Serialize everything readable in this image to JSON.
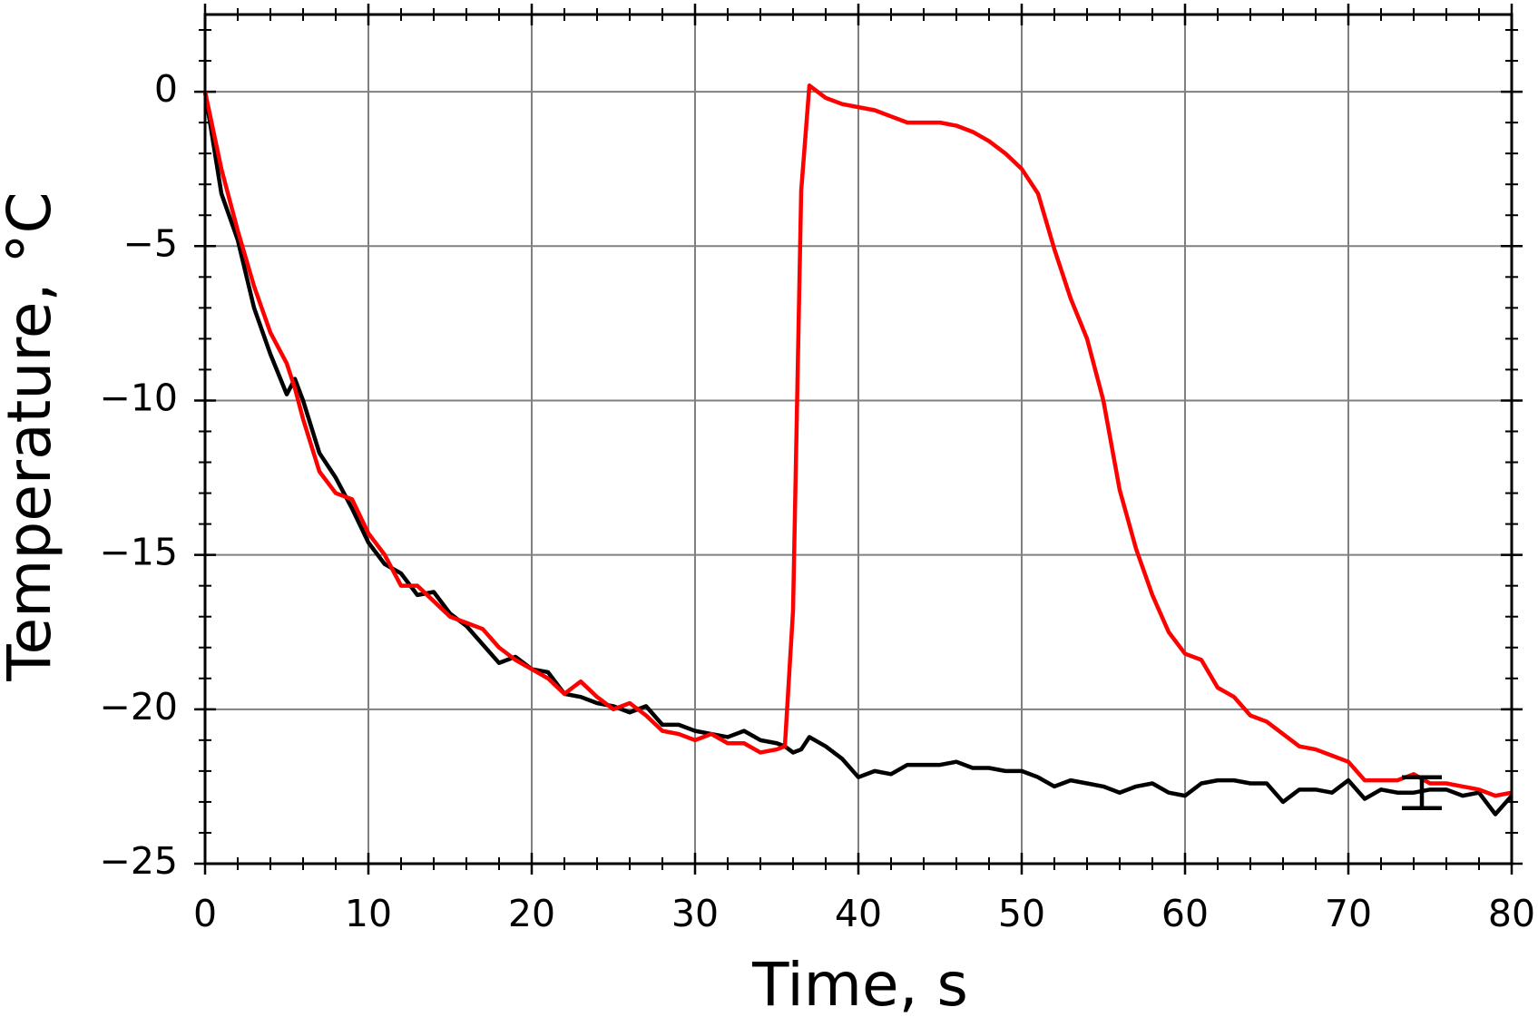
{
  "chart_data": {
    "type": "line",
    "xlabel": "Time, s",
    "ylabel": "Temperature, °C",
    "x": [
      0,
      1,
      2,
      3,
      4,
      5,
      5.5,
      6,
      7,
      8,
      9,
      10,
      11,
      12,
      13,
      14,
      15,
      16,
      17,
      18,
      19,
      20,
      21,
      22,
      23,
      24,
      25,
      26,
      27,
      28,
      29,
      30,
      31,
      32,
      33,
      34,
      35,
      35.5,
      36,
      36.5,
      37,
      38,
      39,
      40,
      41,
      42,
      43,
      44,
      45,
      46,
      47,
      48,
      49,
      50,
      51,
      52,
      53,
      54,
      55,
      56,
      57,
      58,
      59,
      60,
      61,
      62,
      63,
      64,
      65,
      66,
      67,
      68,
      69,
      70,
      71,
      72,
      73,
      74,
      75,
      76,
      77,
      78,
      79,
      80
    ],
    "series": [
      {
        "name": "black",
        "color": "#000000",
        "values": [
          0,
          -3.3,
          -4.8,
          -7,
          -8.5,
          -9.8,
          -9.3,
          -10,
          -11.7,
          -12.5,
          -13.5,
          -14.6,
          -15.3,
          -15.6,
          -16.3,
          -16.2,
          -16.9,
          -17.3,
          -17.9,
          -18.5,
          -18.3,
          -18.7,
          -18.8,
          -19.5,
          -19.6,
          -19.8,
          -19.9,
          -20.1,
          -19.9,
          -20.5,
          -20.5,
          -20.7,
          -20.8,
          -20.9,
          -20.7,
          -21.0,
          -21.1,
          -21.2,
          -21.4,
          -21.3,
          -20.9,
          -21.2,
          -21.6,
          -22.2,
          -22.0,
          -22.1,
          -21.8,
          -21.8,
          -21.8,
          -21.7,
          -21.9,
          -21.9,
          -22.0,
          -22.0,
          -22.2,
          -22.5,
          -22.3,
          -22.4,
          -22.5,
          -22.7,
          -22.5,
          -22.4,
          -22.7,
          -22.8,
          -22.4,
          -22.3,
          -22.3,
          -22.4,
          -22.4,
          -23.0,
          -22.6,
          -22.6,
          -22.7,
          -22.3,
          -22.9,
          -22.6,
          -22.7,
          -22.7,
          -22.6,
          -22.6,
          -22.8,
          -22.7,
          -23.4,
          -22.8
        ]
      },
      {
        "name": "red",
        "color": "#ff0000",
        "values": [
          0,
          -2.5,
          -4.5,
          -6.3,
          -7.8,
          -8.8,
          -9.6,
          -10.6,
          -12.3,
          -13.0,
          -13.2,
          -14.3,
          -15.0,
          -16.0,
          -16.0,
          -16.5,
          -17.0,
          -17.2,
          -17.4,
          -18.0,
          -18.4,
          -18.7,
          -19.0,
          -19.5,
          -19.1,
          -19.6,
          -20.0,
          -19.8,
          -20.2,
          -20.7,
          -20.8,
          -21.0,
          -20.8,
          -21.1,
          -21.1,
          -21.4,
          -21.3,
          -21.2,
          -16.8,
          -3.2,
          0.2,
          -0.2,
          -0.4,
          -0.5,
          -0.6,
          -0.8,
          -1.0,
          -1.0,
          -1.0,
          -1.1,
          -1.3,
          -1.6,
          -2.0,
          -2.5,
          -3.3,
          -5.1,
          -6.7,
          -8.0,
          -10.0,
          -12.9,
          -14.8,
          -16.3,
          -17.5,
          -18.2,
          -18.4,
          -19.3,
          -19.6,
          -20.2,
          -20.4,
          -20.8,
          -21.2,
          -21.3,
          -21.5,
          -21.7,
          -22.3,
          -22.3,
          -22.3,
          -22.1,
          -22.4,
          -22.4,
          -22.5,
          -22.6,
          -22.8,
          -22.7
        ]
      }
    ],
    "error_bar": {
      "x": 74.5,
      "y": -22.7,
      "error": 0.5,
      "color": "#000000"
    },
    "xlim": [
      0,
      80
    ],
    "xticks": [
      0,
      10,
      20,
      30,
      40,
      50,
      60,
      70,
      80
    ],
    "ylim": [
      -25,
      2.5
    ],
    "yticks": [
      {
        "value": -25,
        "label": "−25"
      },
      {
        "value": -20,
        "label": "−20"
      },
      {
        "value": -15,
        "label": "−15"
      },
      {
        "value": -10,
        "label": "−10"
      },
      {
        "value": -5,
        "label": "−5"
      },
      0
    ],
    "x_minor_step": 2,
    "y_minor_step": 1,
    "grid": true,
    "grid_color": "#808080"
  }
}
